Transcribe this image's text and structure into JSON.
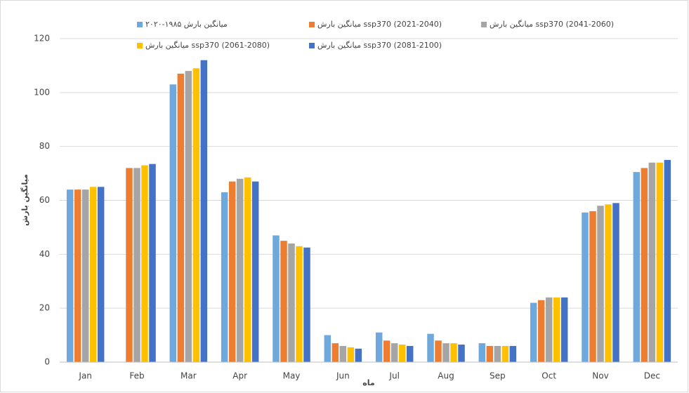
{
  "chart_data": {
    "type": "bar",
    "y_label": "میانگین بارش",
    "x_label": "ماه",
    "categories": [
      "Jan",
      "Feb",
      "Mar",
      "Apr",
      "May",
      "Jun",
      "Jul",
      "Aug",
      "Sep",
      "Oct",
      "Nov",
      "Dec"
    ],
    "series": [
      {
        "name": "میانگین بارش ۱۹۸۵-۲۰۲۰",
        "color": "#6fa8dc",
        "values": [
          64,
          null,
          103,
          63,
          47,
          10,
          11,
          10.5,
          7,
          22,
          55.5,
          70.5
        ]
      },
      {
        "name": "میانگین بارش ssp370 (2021-2040)",
        "color": "#ed7d31",
        "values": [
          64,
          72,
          107,
          67,
          45,
          7,
          8,
          8,
          6,
          23,
          56,
          72
        ]
      },
      {
        "name": "میانگین بارش ssp370 (2041-2060)",
        "color": "#a5a5a5",
        "values": [
          64,
          72,
          108,
          68,
          44,
          6,
          7,
          7,
          6,
          24,
          58,
          74
        ]
      },
      {
        "name": "میانگین بارش ssp370 (2061-2080)",
        "color": "#ffc000",
        "values": [
          65,
          73,
          109,
          68.5,
          43,
          5.5,
          6.5,
          7,
          6,
          24,
          58.5,
          74
        ]
      },
      {
        "name": "میانگین بارش ssp370 (2081-2100)",
        "color": "#4472c4",
        "values": [
          65,
          73.5,
          112,
          67,
          42.5,
          5,
          6,
          6.5,
          6,
          24,
          59,
          75
        ]
      }
    ],
    "ylim": [
      0,
      120
    ],
    "yticks": [
      0,
      20,
      40,
      60,
      80,
      100,
      120
    ],
    "grid": true
  }
}
